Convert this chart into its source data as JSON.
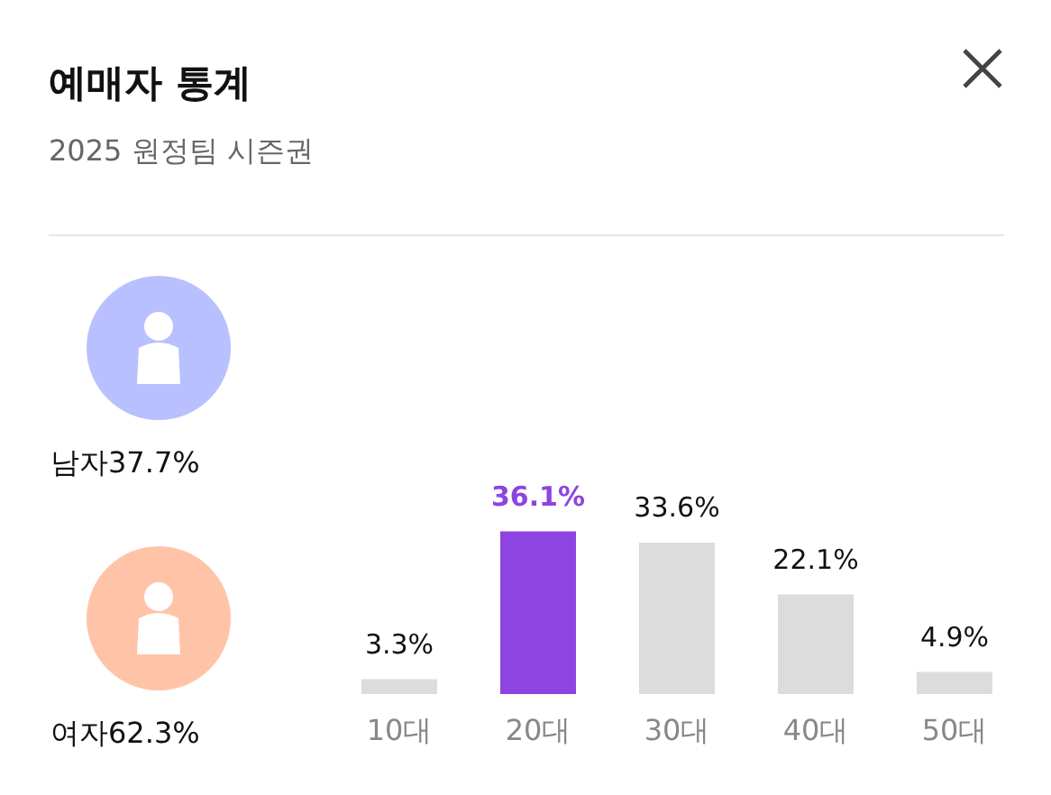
{
  "chart_data": [
    {
      "type": "other",
      "title": "예매자 통계",
      "subtitle": "2025 원정팀 시즌권",
      "categories": [
        "남자",
        "여자"
      ],
      "value_labels": [
        "37.7%",
        "62.3%"
      ],
      "colors": [
        "#b8c0ff",
        "#ffc4a8"
      ]
    },
    {
      "type": "bar",
      "categories": [
        "10대",
        "20대",
        "30대",
        "40대",
        "50대"
      ],
      "values": [
        3.3,
        36.1,
        33.6,
        22.1,
        4.9
      ],
      "value_labels": [
        "3.3%",
        "36.1%",
        "33.6%",
        "22.1%",
        "4.9%"
      ],
      "colors": [
        "#dcdcdc",
        "#8e44e0",
        "#dcdcdc",
        "#dcdcdc",
        "#dcdcdc"
      ]
    }
  ]
}
